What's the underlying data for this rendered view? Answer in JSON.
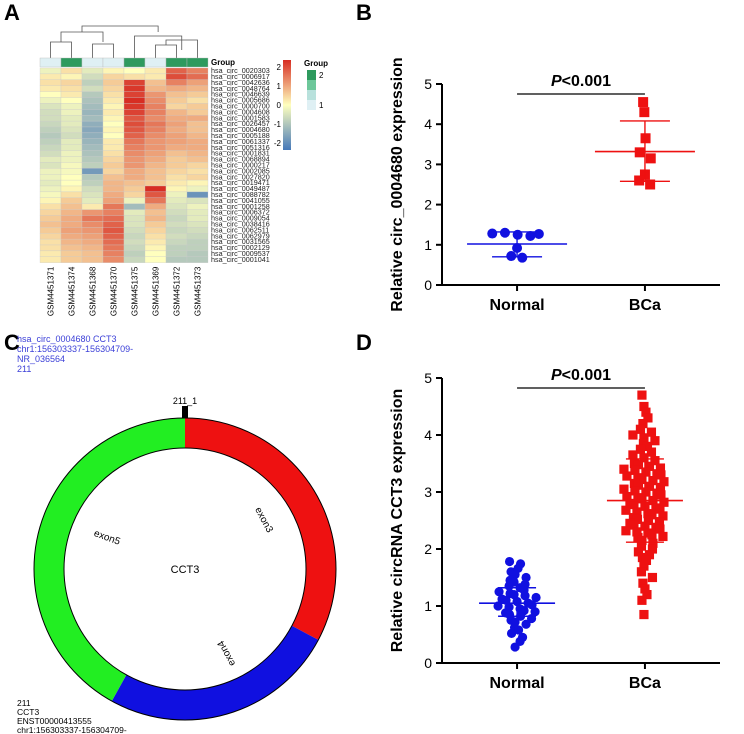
{
  "figure": {
    "panels": [
      {
        "letter": "A"
      },
      {
        "letter": "B"
      },
      {
        "letter": "C"
      },
      {
        "letter": "D"
      }
    ]
  },
  "colors": {
    "blue": "#1010e0",
    "red": "#ee1111",
    "green": "#22ee22",
    "group_dark": "#2e9a5e",
    "group_mid": "#6dc79a",
    "group_light": "#dff0f4"
  },
  "heatmap": {
    "group_title": "Group",
    "samples": [
      "GSM4451371",
      "GSM4451374",
      "GSM4451368",
      "GSM4451370",
      "GSM4451375",
      "GSM4451369",
      "GSM4451372",
      "GSM4451373"
    ],
    "groups": [
      1,
      2,
      1,
      1,
      2,
      1,
      2,
      2
    ],
    "genes": [
      "hsa_circ_0020303",
      "hsa_circ_0006917",
      "hsa_circ_0042636",
      "hsa_circ_0048764",
      "hsa_circ_0046639",
      "hsa_circ_0005686",
      "hsa_circ_0000700",
      "hsa_circ_0004608",
      "hsa_circ_0001583",
      "hsa_circ_0026457",
      "hsa_circ_0004680",
      "hsa_circ_0005188",
      "hsa_circ_0061337",
      "hsa_circ_0051316",
      "hsa_circ_0001831",
      "hsa_circ_0068894",
      "hsa_circ_0000217",
      "hsa_circ_0002085",
      "hsa_circ_0027820",
      "hsa_circ_0019471",
      "hsa_circ_0049487",
      "hsa_circ_0088782",
      "hsa_circ_0041055",
      "hsa_circ_0001258",
      "hsa_circ_0006372",
      "hsa_circ_0009054",
      "hsa_circ_0038416",
      "hsa_circ_0062511",
      "hsa_circ_0062979",
      "hsa_circ_0031565",
      "hsa_circ_0002129",
      "hsa_circ_0009537",
      "hsa_circ_0001041"
    ],
    "values": [
      [
        -0.2,
        0.3,
        -0.3,
        0.1,
        0.0,
        0.2,
        1.5,
        1.2
      ],
      [
        0.2,
        0.1,
        -0.5,
        0.4,
        0.3,
        0.2,
        1.7,
        1.4
      ],
      [
        0.3,
        0.4,
        -0.7,
        0.5,
        1.8,
        0.6,
        1.2,
        0.9
      ],
      [
        0.2,
        0.3,
        -0.5,
        0.4,
        1.9,
        0.7,
        0.8,
        0.7
      ],
      [
        0.0,
        0.2,
        -0.8,
        0.3,
        1.8,
        1.0,
        0.6,
        0.5
      ],
      [
        -0.2,
        0.0,
        -0.9,
        0.2,
        2.0,
        1.1,
        0.5,
        0.3
      ],
      [
        -0.4,
        -0.2,
        -1.0,
        0.1,
        1.9,
        1.2,
        0.4,
        0.5
      ],
      [
        -0.5,
        -0.2,
        -1.1,
        0.2,
        1.8,
        1.2,
        0.7,
        0.5
      ],
      [
        -0.5,
        -0.3,
        -1.0,
        0.1,
        1.6,
        1.1,
        0.8,
        0.8
      ],
      [
        -0.6,
        -0.3,
        -1.2,
        0.0,
        1.7,
        1.3,
        0.9,
        0.6
      ],
      [
        -0.7,
        -0.4,
        -1.3,
        0.1,
        1.6,
        1.2,
        0.8,
        0.6
      ],
      [
        -0.8,
        -0.5,
        -1.2,
        0.0,
        1.5,
        1.1,
        0.9,
        0.7
      ],
      [
        -0.7,
        -0.3,
        -1.1,
        0.2,
        1.3,
        1.0,
        0.9,
        0.8
      ],
      [
        -0.6,
        -0.3,
        -1.0,
        0.2,
        1.2,
        1.0,
        0.8,
        0.8
      ],
      [
        -0.5,
        -0.2,
        -0.9,
        0.3,
        1.1,
        0.9,
        0.6,
        0.7
      ],
      [
        -0.3,
        -0.2,
        -0.8,
        0.4,
        1.0,
        0.8,
        0.5,
        0.6
      ],
      [
        -0.4,
        -0.1,
        -0.7,
        0.5,
        1.0,
        0.7,
        0.5,
        0.4
      ],
      [
        -0.2,
        -0.1,
        -1.5,
        0.4,
        0.8,
        0.6,
        0.4,
        0.3
      ],
      [
        -0.2,
        0.0,
        -0.8,
        0.6,
        0.8,
        0.6,
        0.3,
        0.4
      ],
      [
        -0.3,
        0.0,
        -0.7,
        0.7,
        0.6,
        0.5,
        0.2,
        0.1
      ],
      [
        -0.2,
        0.1,
        -0.5,
        0.7,
        0.5,
        2.3,
        0.1,
        -0.2
      ],
      [
        -0.1,
        0.3,
        -0.4,
        0.8,
        0.4,
        1.6,
        -0.2,
        -1.6
      ],
      [
        0.1,
        0.5,
        -0.3,
        0.9,
        -0.2,
        1.3,
        -0.3,
        -0.4
      ],
      [
        0.3,
        0.6,
        0.2,
        1.3,
        -1.0,
        0.8,
        -0.4,
        -0.2
      ],
      [
        0.4,
        0.7,
        1.0,
        1.2,
        -0.3,
        0.6,
        -0.5,
        -0.3
      ],
      [
        0.5,
        0.8,
        1.3,
        1.4,
        -0.4,
        0.7,
        -0.6,
        -0.3
      ],
      [
        0.6,
        0.8,
        1.1,
        1.5,
        -0.4,
        0.5,
        -0.5,
        -0.4
      ],
      [
        0.5,
        0.9,
        1.0,
        1.6,
        -0.5,
        0.4,
        -0.6,
        -0.5
      ],
      [
        0.4,
        0.8,
        0.9,
        1.5,
        -0.6,
        0.3,
        -0.5,
        -0.6
      ],
      [
        0.3,
        0.7,
        0.8,
        1.4,
        -0.5,
        0.2,
        -0.6,
        -0.7
      ],
      [
        0.3,
        0.6,
        0.7,
        1.3,
        -0.6,
        0.1,
        -0.7,
        -0.7
      ],
      [
        0.2,
        0.5,
        0.6,
        1.2,
        -0.7,
        0.0,
        -0.7,
        -0.8
      ],
      [
        0.2,
        0.5,
        0.6,
        1.1,
        -0.6,
        0.0,
        -0.8,
        -0.8
      ]
    ],
    "scale_ticks": [
      "2",
      "1",
      "0",
      "-1",
      "-2"
    ],
    "group_legend_title": "Group",
    "group_legend_ticks": [
      "2",
      "1"
    ]
  },
  "circ_map": {
    "header_lines": [
      "hsa_circ_0004680 CCT3",
      "chr1:156303337-156304709-",
      "NR_036564",
      "211"
    ],
    "marker_label": "211_1",
    "center_label": "CCT3",
    "segments": [
      {
        "name": "exon3",
        "start_deg": 0,
        "end_deg": 118
      },
      {
        "name": "exon4",
        "start_deg": 118,
        "end_deg": 209
      },
      {
        "name": "exon5",
        "start_deg": 209,
        "end_deg": 360
      }
    ],
    "footer_lines": [
      "211",
      "CCT3",
      "ENST00000413555",
      "chr1:156303337-156304709-"
    ]
  },
  "chart_data": [
    {
      "type": "scatter",
      "panel": "B",
      "ylabel": "Relative circ_0004680 expression",
      "categories": [
        "Normal",
        "BCa"
      ],
      "ylim": [
        0,
        5
      ],
      "yticks": [
        "0",
        "1",
        "2",
        "3",
        "4",
        "5"
      ],
      "significance": "P<0.001",
      "series": [
        {
          "name": "Normal",
          "values": [
            1.28,
            1.3,
            1.25,
            1.22,
            1.27,
            0.92,
            0.72,
            0.68
          ],
          "mean": 1.02,
          "sd_low": 0.7,
          "sd_high": 1.32
        },
        {
          "name": "BCa",
          "values": [
            4.55,
            4.3,
            3.65,
            3.3,
            3.15,
            2.75,
            2.6,
            2.5
          ],
          "mean": 3.32,
          "sd_low": 2.58,
          "sd_high": 4.08
        }
      ]
    },
    {
      "type": "scatter",
      "panel": "D",
      "ylabel": "Relative circRNA CCT3 expression",
      "categories": [
        "Normal",
        "BCa"
      ],
      "ylim": [
        0,
        5
      ],
      "yticks": [
        "0",
        "1",
        "2",
        "3",
        "4",
        "5"
      ],
      "significance": "P<0.001",
      "series": [
        {
          "name": "Normal",
          "values": [
            1.78,
            1.74,
            1.66,
            1.6,
            1.55,
            1.5,
            1.45,
            1.42,
            1.38,
            1.35,
            1.32,
            1.28,
            1.25,
            1.22,
            1.2,
            1.18,
            1.15,
            1.12,
            1.1,
            1.08,
            1.05,
            1.02,
            1.0,
            0.98,
            0.95,
            0.92,
            0.9,
            0.88,
            0.85,
            0.82,
            0.78,
            0.75,
            0.72,
            0.68,
            0.62,
            0.58,
            0.52,
            0.45,
            0.38,
            0.28
          ],
          "mean": 1.05,
          "sd_low": 0.82,
          "sd_high": 1.32
        },
        {
          "name": "BCa",
          "values": [
            4.7,
            4.5,
            4.4,
            4.3,
            4.2,
            4.1,
            4.05,
            4.0,
            3.95,
            3.9,
            3.85,
            3.8,
            3.75,
            3.7,
            3.65,
            3.6,
            3.55,
            3.5,
            3.48,
            3.45,
            3.42,
            3.4,
            3.38,
            3.35,
            3.32,
            3.3,
            3.28,
            3.25,
            3.22,
            3.2,
            3.18,
            3.15,
            3.12,
            3.1,
            3.08,
            3.05,
            3.02,
            3.0,
            2.98,
            2.95,
            2.92,
            2.9,
            2.88,
            2.85,
            2.82,
            2.8,
            2.78,
            2.75,
            2.72,
            2.7,
            2.68,
            2.65,
            2.62,
            2.6,
            2.58,
            2.55,
            2.52,
            2.5,
            2.48,
            2.45,
            2.42,
            2.4,
            2.38,
            2.35,
            2.32,
            2.3,
            2.28,
            2.25,
            2.22,
            2.2,
            2.15,
            2.1,
            2.05,
            2.0,
            1.95,
            1.9,
            1.85,
            1.8,
            1.7,
            1.6,
            1.5,
            1.4,
            1.3,
            1.2,
            1.1,
            0.85
          ],
          "mean": 2.85,
          "sd_low": 2.12,
          "sd_high": 3.58
        }
      ]
    }
  ]
}
